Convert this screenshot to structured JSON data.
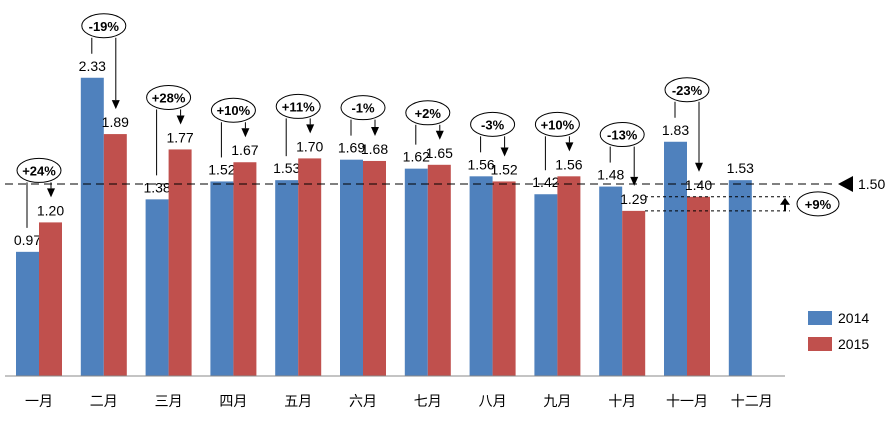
{
  "chart_data": {
    "type": "bar",
    "categories": [
      "一月",
      "二月",
      "三月",
      "四月",
      "五月",
      "六月",
      "七月",
      "八月",
      "九月",
      "十月",
      "十一月",
      "十二月"
    ],
    "series": [
      {
        "name": "2014",
        "color": "#4F81BD",
        "values": [
          0.97,
          2.33,
          1.38,
          1.52,
          1.53,
          1.69,
          1.62,
          1.56,
          1.42,
          1.48,
          1.83,
          1.53
        ]
      },
      {
        "name": "2015",
        "color": "#C0504D",
        "values": [
          1.2,
          1.89,
          1.77,
          1.67,
          1.7,
          1.68,
          1.65,
          1.52,
          1.56,
          1.29,
          1.4,
          null
        ]
      }
    ],
    "change_annotations": [
      "+24%",
      "-19%",
      "+28%",
      "+10%",
      "+11%",
      "-1%",
      "+2%",
      "-3%",
      "+10%",
      "-13%",
      "-23%"
    ],
    "reference_line": {
      "value": 1.5,
      "label": "1.50"
    },
    "gap_annotation": {
      "label": "+9%",
      "from": 1.29,
      "to": 1.4
    },
    "ylim": [
      0,
      2.5
    ],
    "grid": false,
    "legend_position": "right"
  }
}
